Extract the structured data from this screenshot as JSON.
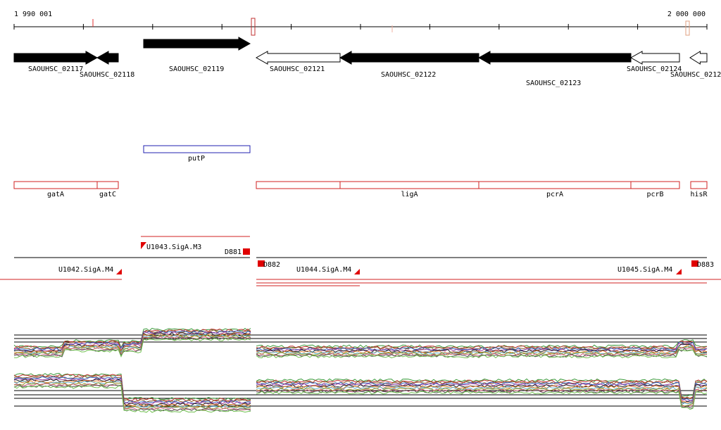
{
  "ruler": {
    "start": "1 990 001",
    "end": "2 000 000"
  },
  "genes": [
    {
      "label": "SAOUHSC_02117"
    },
    {
      "label": "SAOUHSC_02118"
    },
    {
      "label": "SAOUHSC_02119"
    },
    {
      "label": "SAOUHSC_02121"
    },
    {
      "label": "SAOUHSC_02122"
    },
    {
      "label": "SAOUHSC_02123"
    },
    {
      "label": "SAOUHSC_02124"
    },
    {
      "label": "SAOUHSC_0212"
    }
  ],
  "annotations": [
    {
      "label": "putP"
    }
  ],
  "regions": [
    {
      "label": "gatA"
    },
    {
      "label": "gatC"
    },
    {
      "label": "ligA"
    },
    {
      "label": "pcrA"
    },
    {
      "label": "pcrB"
    },
    {
      "label": "hisR"
    }
  ],
  "promoters": [
    {
      "label": "U1043.SigA.M3"
    },
    {
      "label": "D881"
    },
    {
      "label": "U1042.SigA.M4"
    },
    {
      "label": "D882"
    },
    {
      "label": "U1044.SigA.M4"
    },
    {
      "label": "U1045.SigA.M4"
    },
    {
      "label": "D883"
    }
  ]
}
